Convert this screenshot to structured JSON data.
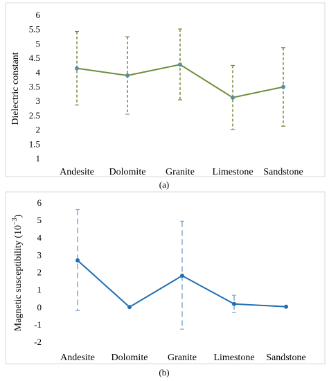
{
  "chart_data": [
    {
      "type": "line",
      "panel_label": "(a)",
      "ylabel": "Dielectric constant",
      "categories": [
        "Andesite",
        "Dolomite",
        "Granite",
        "Limestone",
        "Sandstone"
      ],
      "values": [
        4.15,
        3.9,
        4.28,
        3.13,
        3.5
      ],
      "error_low": [
        2.87,
        2.55,
        3.05,
        2.02,
        2.13
      ],
      "error_high": [
        5.43,
        5.25,
        5.52,
        4.25,
        4.87
      ],
      "ylim": [
        1,
        6
      ],
      "yticks": [
        "1",
        "1.5",
        "2",
        "2.5",
        "3",
        "3.5",
        "4",
        "4.5",
        "5",
        "5.5",
        "6"
      ],
      "line_color": "#6e8c3a",
      "marker_color": "#5b8da0",
      "errorbar_color": "#6e8c3a"
    },
    {
      "type": "line",
      "panel_label": "(b)",
      "ylabel": "Magnetic susceptibility (10",
      "ylabel_sup": "−3",
      "ylabel_end": ")",
      "categories": [
        "Andesite",
        "Dolomite",
        "Granite",
        "Limestone",
        "Sandstone"
      ],
      "values": [
        2.7,
        0.02,
        1.82,
        0.2,
        0.04
      ],
      "error_low": [
        -0.18,
        0.02,
        -1.25,
        -0.3,
        0.04
      ],
      "error_high": [
        5.62,
        0.02,
        4.95,
        0.7,
        0.04
      ],
      "ylim": [
        -2,
        6
      ],
      "yticks": [
        "-2",
        "-1",
        "0",
        "1",
        "2",
        "3",
        "4",
        "5",
        "6"
      ],
      "line_color": "#1f6fb2",
      "marker_color": "#1f6fb2",
      "errorbar_color": "#7fa8d6"
    }
  ]
}
